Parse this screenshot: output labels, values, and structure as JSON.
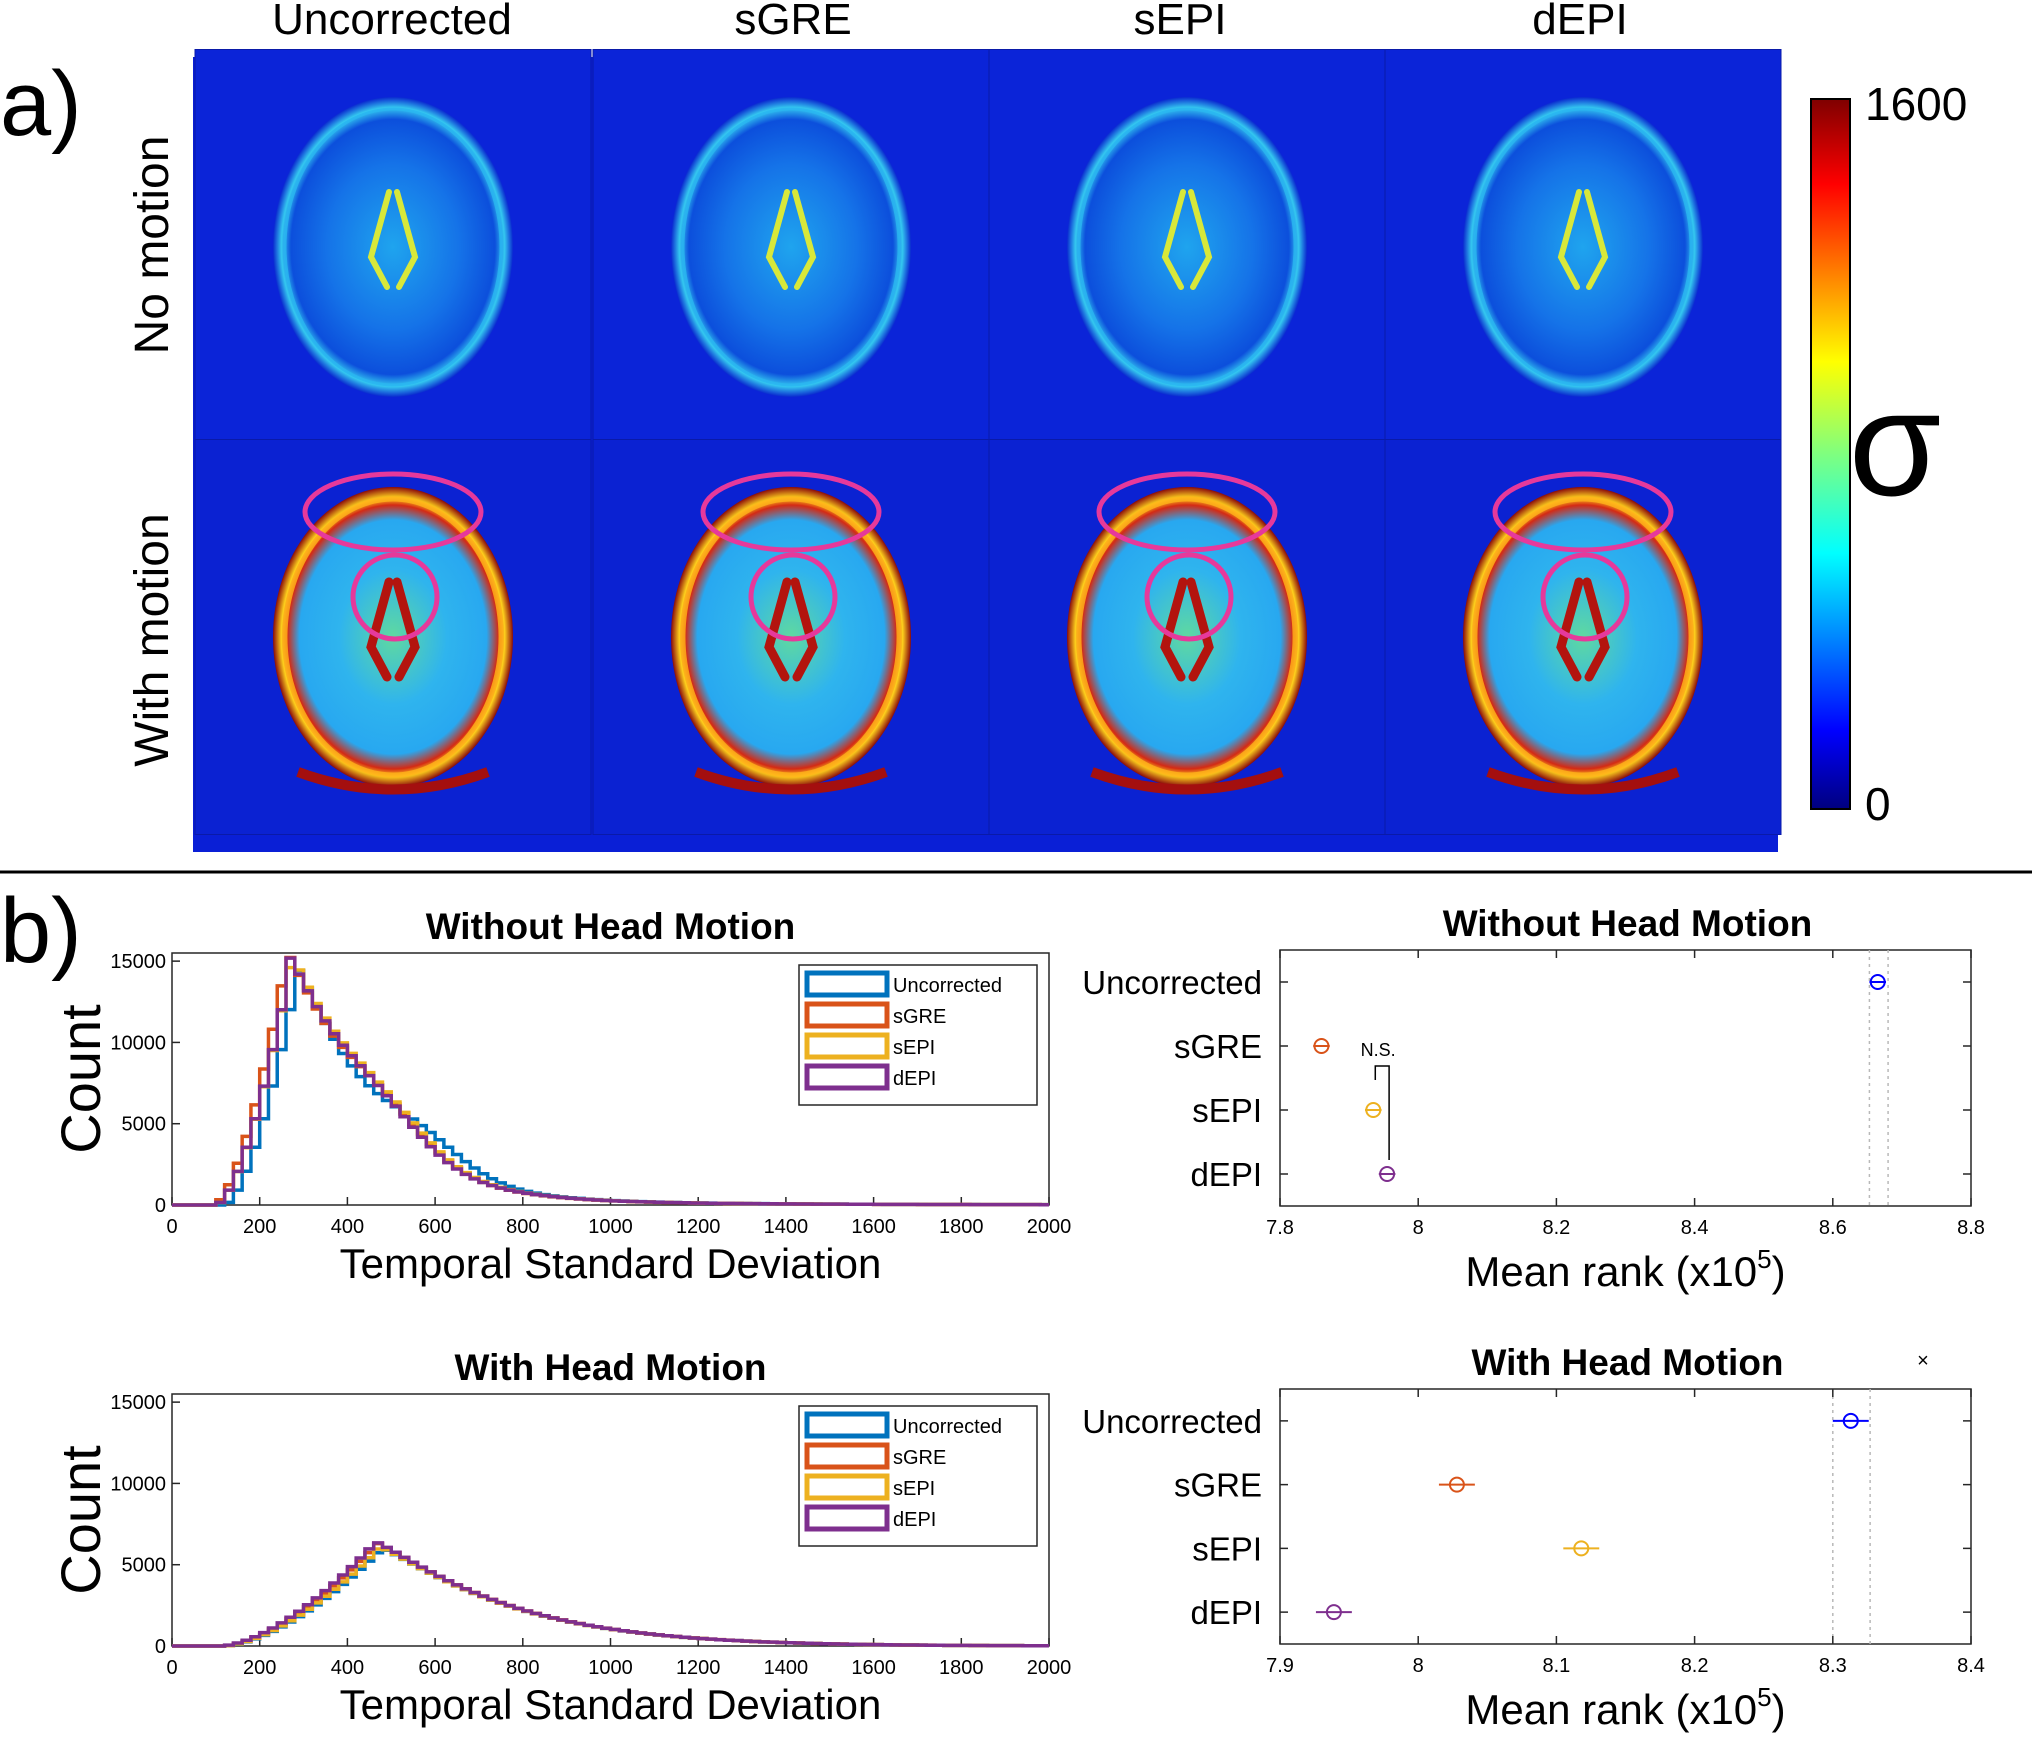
{
  "panel_a": {
    "label": "a)",
    "columns": [
      "Uncorrected",
      "sGRE",
      "sEPI",
      "dEPI"
    ],
    "rows": [
      "No motion",
      "With motion"
    ],
    "colorbar": {
      "max_label": "1600",
      "min_label": "0",
      "symbol": "σ",
      "colormap": "jet"
    },
    "highlight_color": "#e6399b"
  },
  "panel_b": {
    "label": "b)"
  },
  "chart_data": [
    {
      "type": "histogram",
      "title": "Without Head Motion",
      "xlabel": "Temporal Standard Deviation",
      "ylabel": "Count",
      "xlim": [
        0,
        2000
      ],
      "ylim": [
        0,
        15500
      ],
      "xticks": [
        "0",
        "200",
        "400",
        "600",
        "800",
        "1000",
        "1200",
        "1400",
        "1600",
        "1800",
        "2000"
      ],
      "yticks": [
        "0",
        "5000",
        "10000",
        "15000"
      ],
      "legend": {
        "position": "top-right",
        "entries": [
          "Uncorrected",
          "sGRE",
          "sEPI",
          "dEPI"
        ]
      },
      "series": [
        {
          "name": "Uncorrected",
          "color": "#0072BD",
          "peak_x": 285,
          "peak_y": 14000,
          "rise_start": 120,
          "shoulder_x": 560,
          "shoulder_y": 3800
        },
        {
          "name": "sGRE",
          "color": "#D95319",
          "peak_x": 260,
          "peak_y": 14900,
          "rise_start": 95,
          "shoulder_x": 480,
          "shoulder_y": 4800
        },
        {
          "name": "sEPI",
          "color": "#EDB120",
          "peak_x": 270,
          "peak_y": 14600,
          "rise_start": 100,
          "shoulder_x": 480,
          "shoulder_y": 4700
        },
        {
          "name": "dEPI",
          "color": "#7E2F8E",
          "peak_x": 268,
          "peak_y": 14400,
          "rise_start": 100,
          "shoulder_x": 470,
          "shoulder_y": 4500
        }
      ]
    },
    {
      "type": "scatter",
      "title": "Without Head Motion",
      "xlabel": "Mean rank (x10",
      "xlabel_sup": "5",
      "xlabel_end": ")",
      "xlim": [
        7.8,
        8.8
      ],
      "xticks": [
        "7.8",
        "8",
        "8.2",
        "8.4",
        "8.6",
        "8.8"
      ],
      "categories": [
        "Uncorrected",
        "sGRE",
        "sEPI",
        "dEPI"
      ],
      "values": [
        8.665,
        7.86,
        7.935,
        7.955
      ],
      "errors": [
        0.012,
        0.012,
        0.012,
        0.012
      ],
      "colors": [
        "#0000ff",
        "#D95319",
        "#EDB120",
        "#7E2F8E"
      ],
      "reference_lines": [
        8.653,
        8.68
      ],
      "annotation": {
        "text": "N.S.",
        "from": "sEPI",
        "to": "dEPI"
      }
    },
    {
      "type": "histogram",
      "title": "With Head Motion",
      "xlabel": "Temporal Standard Deviation",
      "ylabel": "Count",
      "xlim": [
        0,
        2000
      ],
      "ylim": [
        0,
        15500
      ],
      "xticks": [
        "0",
        "200",
        "400",
        "600",
        "800",
        "1000",
        "1200",
        "1400",
        "1600",
        "1800",
        "2000"
      ],
      "yticks": [
        "0",
        "5000",
        "10000",
        "15000"
      ],
      "legend": {
        "position": "top-right",
        "entries": [
          "Uncorrected",
          "sGRE",
          "sEPI",
          "dEPI"
        ]
      },
      "series": [
        {
          "name": "Uncorrected",
          "color": "#0072BD",
          "peak_x": 480,
          "peak_y": 6000,
          "rise_start": 120
        },
        {
          "name": "sGRE",
          "color": "#D95319",
          "peak_x": 470,
          "peak_y": 6300,
          "rise_start": 115
        },
        {
          "name": "sEPI",
          "color": "#EDB120",
          "peak_x": 475,
          "peak_y": 6100,
          "rise_start": 118
        },
        {
          "name": "dEPI",
          "color": "#7E2F8E",
          "peak_x": 465,
          "peak_y": 6400,
          "rise_start": 112
        }
      ]
    },
    {
      "type": "scatter",
      "title": "With Head Motion",
      "xlabel": "Mean rank (x10",
      "xlabel_sup": "5",
      "xlabel_end": ")",
      "xlim": [
        7.9,
        8.4
      ],
      "xticks": [
        "7.9",
        "8",
        "8.1",
        "8.2",
        "8.3",
        "8.4"
      ],
      "categories": [
        "Uncorrected",
        "sGRE",
        "sEPI",
        "dEPI"
      ],
      "values": [
        8.313,
        8.028,
        8.118,
        7.939
      ],
      "errors": [
        0.013,
        0.013,
        0.013,
        0.013
      ],
      "colors": [
        "#0000ff",
        "#D95319",
        "#EDB120",
        "#7E2F8E"
      ],
      "reference_lines": [
        8.3,
        8.327
      ],
      "extra_marker": "×"
    }
  ]
}
